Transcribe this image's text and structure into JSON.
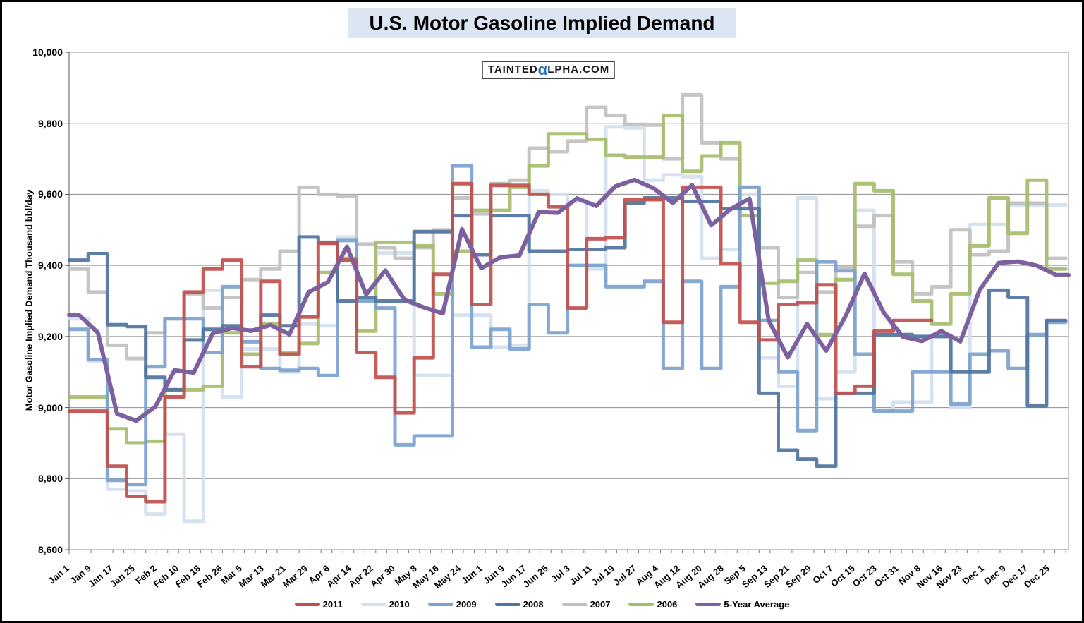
{
  "title": "U.S. Motor Gasoline Implied Demand",
  "watermark": {
    "text_before_alpha": "TAINTED",
    "alpha_char": "α",
    "text_after_alpha": "LPHA.COM"
  },
  "y_axis": {
    "title": "Motor Gasoline Implied Demand Thousand bbl/day",
    "min": 8600,
    "max": 10000,
    "step": 200,
    "tick_labels": [
      "8,600",
      "8,800",
      "9,000",
      "9,200",
      "9,400",
      "9,600",
      "9,800",
      "10,000"
    ]
  },
  "x_axis": {
    "labels": [
      {
        "text": "Jan 1",
        "day": 0
      },
      {
        "text": "Jan 9",
        "day": 8
      },
      {
        "text": "Jan 17",
        "day": 16
      },
      {
        "text": "Jan 25",
        "day": 24
      },
      {
        "text": "Feb 2",
        "day": 32
      },
      {
        "text": "Feb 10",
        "day": 40
      },
      {
        "text": "Feb 18",
        "day": 48
      },
      {
        "text": "Feb 26",
        "day": 56
      },
      {
        "text": "Mar 5",
        "day": 63
      },
      {
        "text": "Mar 13",
        "day": 71
      },
      {
        "text": "Mar 21",
        "day": 79
      },
      {
        "text": "Mar 29",
        "day": 87
      },
      {
        "text": "Apr 6",
        "day": 95
      },
      {
        "text": "Apr 14",
        "day": 103
      },
      {
        "text": "Apr 22",
        "day": 111
      },
      {
        "text": "Apr 30",
        "day": 119
      },
      {
        "text": "May 8",
        "day": 127
      },
      {
        "text": "May 16",
        "day": 135
      },
      {
        "text": "May 24",
        "day": 143
      },
      {
        "text": "Jun 1",
        "day": 151
      },
      {
        "text": "Jun 9",
        "day": 159
      },
      {
        "text": "Jun 17",
        "day": 167
      },
      {
        "text": "Jun 25",
        "day": 175
      },
      {
        "text": "Jul 3",
        "day": 183
      },
      {
        "text": "Jul 11",
        "day": 191
      },
      {
        "text": "Jul 19",
        "day": 199
      },
      {
        "text": "Jul 27",
        "day": 207
      },
      {
        "text": "Aug 4",
        "day": 215
      },
      {
        "text": "Aug 12",
        "day": 223
      },
      {
        "text": "Aug 20",
        "day": 231
      },
      {
        "text": "Aug 28",
        "day": 239
      },
      {
        "text": "Sep 5",
        "day": 247
      },
      {
        "text": "Sep 13",
        "day": 255
      },
      {
        "text": "Sep 21",
        "day": 263
      },
      {
        "text": "Sep 29",
        "day": 271
      },
      {
        "text": "Oct 7",
        "day": 279
      },
      {
        "text": "Oct 15",
        "day": 287
      },
      {
        "text": "Oct 23",
        "day": 295
      },
      {
        "text": "Oct 31",
        "day": 303
      },
      {
        "text": "Nov 8",
        "day": 311
      },
      {
        "text": "Nov 16",
        "day": 319
      },
      {
        "text": "Nov 23",
        "day": 326
      },
      {
        "text": "Dec 1",
        "day": 334
      },
      {
        "text": "Dec 9",
        "day": 342
      },
      {
        "text": "Dec 17",
        "day": 350
      },
      {
        "text": "Dec 25",
        "day": 358
      }
    ]
  },
  "chart_data": {
    "type": "line",
    "interpolation": "weekly-steps",
    "x_range_days": [
      0,
      365
    ],
    "ylim": [
      8600,
      10000
    ],
    "grid": "horizontal",
    "legend_position": "bottom-center",
    "series": [
      {
        "name": "2011",
        "color": "#C0504D",
        "values": [
          8990,
          8990,
          8835,
          8750,
          8735,
          9030,
          9325,
          9390,
          9415,
          9115,
          9355,
          9150,
          9255,
          9462,
          9415,
          9155,
          9085,
          8985,
          9140,
          9375,
          9630,
          9290,
          9625,
          9625,
          9600,
          9565,
          9280,
          9475,
          9478,
          9585,
          9585,
          9240,
          9620,
          9620,
          9405,
          9240,
          9190,
          9290,
          9295,
          9345,
          9040,
          9060,
          9215,
          9245,
          9245
        ]
      },
      {
        "name": "2010",
        "color": "#D3E0EF",
        "values": [
          9250,
          9130,
          8770,
          8765,
          8700,
          8925,
          8680,
          9330,
          9030,
          9165,
          9165,
          9100,
          9235,
          9230,
          9480,
          9305,
          9435,
          9435,
          9090,
          9090,
          9260,
          9260,
          9170,
          9175,
          9610,
          9600,
          9580,
          9390,
          9790,
          9787,
          9640,
          9655,
          9650,
          9420,
          9445,
          9600,
          9140,
          9060,
          9590,
          9025,
          9100,
          9555,
          8990,
          9015,
          9015,
          9200,
          9000,
          9515,
          9515,
          9570,
          9570,
          9570
        ]
      },
      {
        "name": "2009",
        "color": "#7BA2CE",
        "values": [
          9220,
          9135,
          8795,
          8783,
          9115,
          9250,
          9250,
          9155,
          9340,
          9185,
          9110,
          9105,
          9110,
          9090,
          9470,
          9300,
          9280,
          8895,
          8920,
          8920,
          9680,
          9170,
          9220,
          9165,
          9290,
          9210,
          9400,
          9400,
          9340,
          9340,
          9355,
          9110,
          9355,
          9110,
          9340,
          9620,
          9245,
          9100,
          8935,
          9410,
          9385,
          9150,
          8990,
          8990,
          9100,
          9100,
          9010,
          9150,
          9160,
          9110,
          9205,
          9240
        ]
      },
      {
        "name": "2008",
        "color": "#4F749E",
        "values": [
          9415,
          9433,
          9233,
          9228,
          9085,
          9050,
          9190,
          9220,
          9230,
          9218,
          9260,
          9230,
          9480,
          9465,
          9300,
          9310,
          9300,
          9300,
          9495,
          9495,
          9540,
          9430,
          9540,
          9540,
          9440,
          9440,
          9445,
          9445,
          9450,
          9575,
          9590,
          9590,
          9580,
          9580,
          9560,
          9560,
          9040,
          8880,
          8855,
          8835,
          9040,
          9040,
          9205,
          9205,
          9200,
          9200,
          9100,
          9100,
          9330,
          9310,
          9005,
          9245
        ]
      },
      {
        "name": "2007",
        "color": "#C1C0C0",
        "values": [
          9390,
          9325,
          9175,
          9138,
          9210,
          9250,
          9320,
          9280,
          9310,
          9360,
          9390,
          9440,
          9620,
          9600,
          9595,
          9460,
          9450,
          9420,
          9450,
          9500,
          9590,
          9545,
          9630,
          9640,
          9730,
          9720,
          9750,
          9845,
          9822,
          9797,
          9795,
          9700,
          9880,
          9745,
          9700,
          9620,
          9450,
          9310,
          9380,
          9325,
          9395,
          9510,
          9540,
          9410,
          9320,
          9340,
          9500,
          9430,
          9440,
          9575,
          9575,
          9420
        ]
      },
      {
        "name": "2006",
        "color": "#A4BD6B",
        "values": [
          9030,
          9030,
          8940,
          8900,
          8905,
          9050,
          9050,
          9060,
          9210,
          9150,
          9235,
          9155,
          9180,
          9380,
          9420,
          9215,
          9465,
          9465,
          9455,
          9320,
          9440,
          9555,
          9555,
          9620,
          9680,
          9770,
          9770,
          9755,
          9710,
          9705,
          9705,
          9822,
          9665,
          9708,
          9745,
          9540,
          9350,
          9355,
          9415,
          9205,
          9360,
          9630,
          9610,
          9375,
          9300,
          9235,
          9320,
          9455,
          9590,
          9490,
          9640,
          9390
        ]
      },
      {
        "name": "5-Year Average",
        "color": "#7D60A0",
        "derived": "mean_of_years_2006_2010",
        "line_style": "smooth-midpoint"
      }
    ]
  },
  "legend": [
    {
      "label": "2011",
      "color": "#C0504D"
    },
    {
      "label": "2010",
      "color": "#D3E0EF"
    },
    {
      "label": "2009",
      "color": "#7BA2CE"
    },
    {
      "label": "2008",
      "color": "#4F749E"
    },
    {
      "label": "2007",
      "color": "#C1C0C0"
    },
    {
      "label": "2006",
      "color": "#A4BD6B"
    },
    {
      "label": "5-Year Average",
      "color": "#7D60A0"
    }
  ]
}
